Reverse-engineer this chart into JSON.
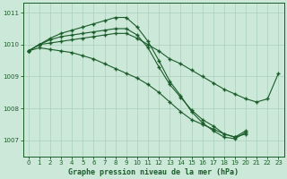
{
  "title": "Graphe pression niveau de la mer (hPa)",
  "background_color": "#cce8d8",
  "grid_color": "#aacfbc",
  "line_color": "#1a5c2a",
  "xlim": [
    -0.5,
    23.5
  ],
  "ylim": [
    1006.5,
    1011.3
  ],
  "yticks": [
    1007,
    1008,
    1009,
    1010,
    1011
  ],
  "xticks": [
    0,
    1,
    2,
    3,
    4,
    5,
    6,
    7,
    8,
    9,
    10,
    11,
    12,
    13,
    14,
    15,
    16,
    17,
    18,
    19,
    20,
    21,
    22,
    23
  ],
  "series": [
    {
      "x": [
        0,
        1,
        2,
        3,
        4,
        5,
        6,
        7,
        8,
        9,
        10,
        11,
        12,
        13,
        14,
        15,
        16,
        17,
        18,
        19,
        20,
        21,
        22,
        23
      ],
      "y": [
        1009.8,
        1010.0,
        1010.05,
        1010.1,
        1010.15,
        1010.2,
        1010.25,
        1010.3,
        1010.35,
        1010.35,
        1010.2,
        1010.0,
        1009.8,
        1009.55,
        1009.4,
        1009.2,
        1009.0,
        1008.8,
        1008.6,
        1008.45,
        1008.3,
        1008.2,
        1008.3,
        1009.1
      ]
    },
    {
      "x": [
        0,
        1,
        2,
        3,
        4,
        5,
        6,
        7,
        8,
        9,
        10,
        11,
        12,
        13,
        14,
        15,
        16,
        17,
        18,
        19,
        20
      ],
      "y": [
        1009.8,
        1010.0,
        1010.15,
        1010.25,
        1010.3,
        1010.35,
        1010.4,
        1010.45,
        1010.5,
        1010.5,
        1010.3,
        1009.9,
        1009.3,
        1008.75,
        1008.35,
        1007.95,
        1007.65,
        1007.45,
        1007.2,
        1007.1,
        1007.3
      ]
    },
    {
      "x": [
        0,
        1,
        2,
        3,
        4,
        5,
        6,
        7,
        8,
        9,
        10,
        11,
        12,
        13,
        14,
        15,
        16,
        17,
        18,
        19,
        20
      ],
      "y": [
        1009.8,
        1010.0,
        1010.2,
        1010.35,
        1010.45,
        1010.55,
        1010.65,
        1010.75,
        1010.85,
        1010.85,
        1010.55,
        1010.1,
        1009.5,
        1008.85,
        1008.4,
        1007.9,
        1007.55,
        1007.3,
        1007.1,
        1007.05,
        1007.25
      ]
    },
    {
      "x": [
        0,
        1,
        2,
        3,
        4,
        5,
        6,
        7,
        8,
        9,
        10,
        11,
        12,
        13,
        14,
        15,
        16,
        17,
        18,
        19,
        20
      ],
      "y": [
        1009.8,
        1009.9,
        1009.85,
        1009.8,
        1009.75,
        1009.65,
        1009.55,
        1009.4,
        1009.25,
        1009.1,
        1008.95,
        1008.75,
        1008.5,
        1008.2,
        1007.9,
        1007.65,
        1007.5,
        1007.35,
        1007.2,
        1007.1,
        1007.2
      ]
    }
  ]
}
